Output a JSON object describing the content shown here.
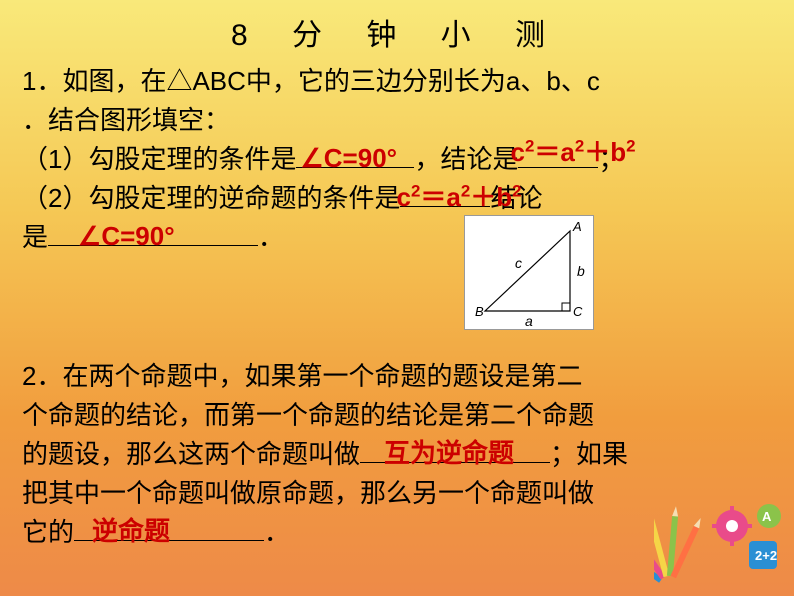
{
  "title": "8 分 钟 小 测",
  "q1": {
    "stem_a": "1．如图，在△ABC中，它的三边分别长为a、b、c",
    "stem_b": "．结合图形填空：",
    "part1_a": "（1）勾股定理的条件是",
    "ans1": "∠C=90°",
    "part1_b": "，结论是",
    "ans2_html": "c<sup>2</sup>＝a<sup>2</sup>＋b<sup>2</sup>",
    "part1_c": "；",
    "part2_a": "（2）勾股定理的逆命题的条件是",
    "ans3_html": "c<sup>2</sup>＝a<sup>2</sup>＋b<sup>2</sup>",
    "part2_b": "结论",
    "part2_c": "是",
    "ans4": "∠C=90°",
    "part2_d": "．"
  },
  "triangle": {
    "A": "A",
    "B": "B",
    "C": "C",
    "a": "a",
    "b": "b",
    "c": "c",
    "stroke": "#000",
    "fill": "#fff"
  },
  "q2": {
    "l1": "2．在两个命题中，如果第一个命题的题设是第二",
    "l2": "个命题的结论，而第一个命题的结论是第二个命题",
    "l3a": "的题设，那么这两个命题叫做",
    "ans5": "互为逆命题",
    "l3b": "；如果",
    "l4": "把其中一个命题叫做原命题，那么另一个命题叫做",
    "l5a": "它的",
    "ans6": "逆命题",
    "l5b": "．"
  },
  "decoration": {
    "pencil_colors": [
      "#2a8fd4",
      "#e94b8a",
      "#f5d547",
      "#8bc34a",
      "#ff7043"
    ],
    "gear_color": "#e94b8a",
    "block_color": "#2a8fd4"
  }
}
